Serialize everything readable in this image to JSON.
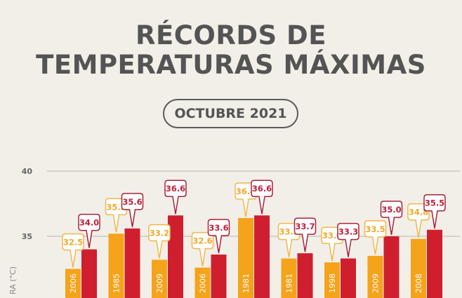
{
  "header": {
    "title_line1": "RÉCORDS DE",
    "title_line2": "TEMPERATURAS MÁXIMAS",
    "period": "OCTUBRE 2021"
  },
  "chart_data": {
    "type": "bar",
    "ylabel": "RA (°C)",
    "ylim": [
      30,
      40
    ],
    "yticks": [
      40,
      35
    ],
    "grid": true,
    "colors": {
      "series1": "#f5a31b",
      "series2": "#cf1f2e"
    },
    "groups": [
      {
        "values": [
          32.5,
          34.0
        ],
        "year": "2006"
      },
      {
        "values": [
          35.2,
          35.6
        ],
        "year": "1985"
      },
      {
        "values": [
          33.2,
          36.6
        ],
        "year": "2009"
      },
      {
        "values": [
          32.6,
          33.6
        ],
        "year": "2006"
      },
      {
        "values": [
          36.4,
          36.6
        ],
        "year": "1981"
      },
      {
        "values": [
          33.3,
          33.7
        ],
        "year": "1981"
      },
      {
        "values": [
          33.0,
          33.3
        ],
        "year": "1998"
      },
      {
        "values": [
          33.5,
          35.0
        ],
        "year": "2009"
      },
      {
        "values": [
          34.8,
          35.5
        ],
        "year": "2008"
      }
    ]
  }
}
